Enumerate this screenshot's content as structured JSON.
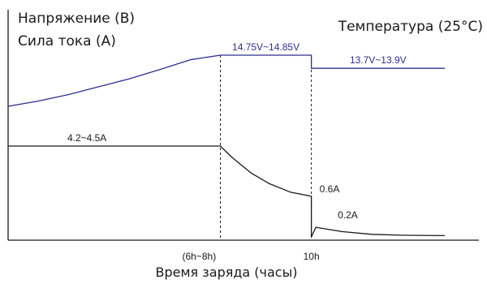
{
  "chart_data": {
    "type": "line",
    "ylabel_lines": [
      "Напряжение (В)",
      "Сила тока (А)"
    ],
    "xlabel": "Время заряда (часы)",
    "condition_label": "Температура (25°C)",
    "x_tick_labels": [
      {
        "label": "(6h~8h)",
        "x": 6.3
      },
      {
        "label": "10h",
        "x": 10
      }
    ],
    "phase_boundaries": [
      7,
      10
    ],
    "series": [
      {
        "name": "voltage",
        "color": "#2e2f8e",
        "points": [
          [
            0,
            10.9
          ],
          [
            1,
            11.3
          ],
          [
            2,
            11.8
          ],
          [
            3,
            12.4
          ],
          [
            4,
            13.0
          ],
          [
            5,
            13.7
          ],
          [
            6,
            14.45
          ],
          [
            7,
            14.8
          ],
          [
            10,
            14.8
          ],
          [
            10,
            13.8
          ],
          [
            14.4,
            13.8
          ]
        ]
      },
      {
        "name": "current",
        "color": "#1a1a1a",
        "points": [
          [
            0,
            4.35
          ],
          [
            7,
            4.35
          ],
          [
            7.4,
            3.8
          ],
          [
            8,
            3.1
          ],
          [
            8.6,
            2.6
          ],
          [
            9.3,
            2.2
          ],
          [
            10,
            2.0
          ],
          [
            10,
            0.1
          ],
          [
            10.15,
            0.55
          ],
          [
            11,
            0.35
          ],
          [
            12,
            0.22
          ],
          [
            13,
            0.18
          ],
          [
            14.4,
            0.16
          ]
        ]
      }
    ],
    "annotations": [
      {
        "text": "14.75V~14.85V",
        "series": "voltage",
        "x": 8.5,
        "y": 14.8,
        "color": "#2e2f8e"
      },
      {
        "text": "13.7V~13.9V",
        "series": "voltage",
        "x": 12.2,
        "y": 13.8,
        "color": "#2e2f8e"
      },
      {
        "text": "4.2~4.5A",
        "series": "current",
        "x": 2.6,
        "y": 4.35,
        "color": "#1a1a1a"
      },
      {
        "text": "0.6A",
        "series": "current",
        "x": 10.6,
        "y": 1.95,
        "color": "#1a1a1a"
      },
      {
        "text": "0.2A",
        "series": "current",
        "x": 11.2,
        "y": 0.75,
        "color": "#1a1a1a"
      }
    ]
  }
}
